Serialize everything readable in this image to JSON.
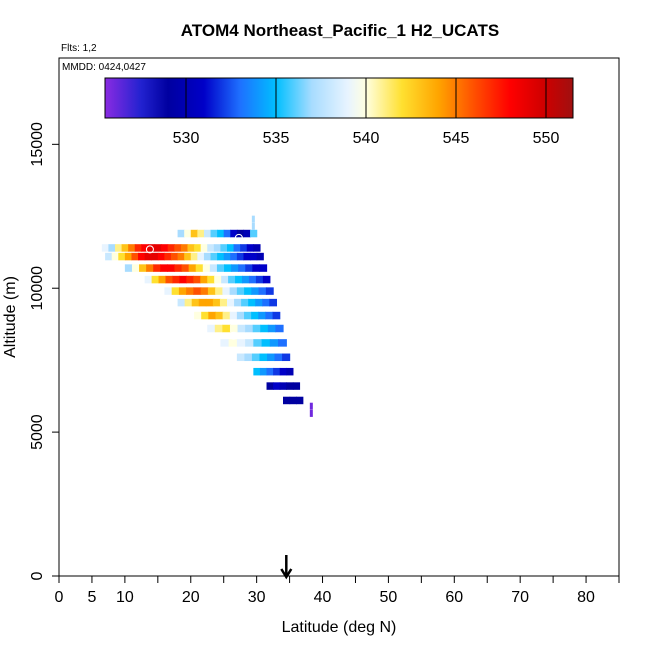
{
  "chart_data": {
    "type": "heatmap",
    "title": "ATOM4 Northeast_Pacific_1 H2_UCATS",
    "flights_label": "Flts: 1,2",
    "dates_label": "MMDD: 0424,0427",
    "xlabel": "Latitude (deg N)",
    "ylabel": "Altitude (m)",
    "xlim": [
      0,
      85
    ],
    "ylim": [
      0,
      18000
    ],
    "x_ticks": [
      0,
      5,
      10,
      20,
      30,
      40,
      50,
      60,
      70,
      80
    ],
    "y_ticks": [
      0,
      5000,
      10000,
      15000
    ],
    "colorbar": {
      "range": [
        525.5,
        551.5
      ],
      "ticks": [
        530,
        535,
        540,
        545,
        550
      ],
      "stops": [
        {
          "v": 525.5,
          "c": "#8a2be2"
        },
        {
          "v": 527.5,
          "c": "#2222d0"
        },
        {
          "v": 529,
          "c": "#0000a0"
        },
        {
          "v": 531,
          "c": "#0000c8"
        },
        {
          "v": 533,
          "c": "#1e70ff"
        },
        {
          "v": 535,
          "c": "#00bfff"
        },
        {
          "v": 537,
          "c": "#a8dcff"
        },
        {
          "v": 539,
          "c": "#e8f4ff"
        },
        {
          "v": 540,
          "c": "#ffffe0"
        },
        {
          "v": 542,
          "c": "#ffe030"
        },
        {
          "v": 544,
          "c": "#ffa500"
        },
        {
          "v": 546,
          "c": "#ff5000"
        },
        {
          "v": 548,
          "c": "#ff0000"
        },
        {
          "v": 550,
          "c": "#cc0000"
        },
        {
          "v": 551.5,
          "c": "#a01010"
        }
      ]
    },
    "flight_tracks": [
      {
        "alt": 11900,
        "lat": [
          18,
          30
        ],
        "values": [
          537,
          540,
          543,
          541,
          538,
          536,
          535,
          533,
          531,
          529,
          530,
          536
        ]
      },
      {
        "alt": 11400,
        "lat": [
          6.5,
          30.5
        ],
        "values": [
          539,
          537,
          541,
          543,
          545,
          547,
          548,
          549,
          549,
          548,
          547,
          546,
          545,
          543,
          542,
          540,
          538,
          537,
          536,
          535,
          533,
          532,
          531,
          530
        ]
      },
      {
        "alt": 11100,
        "lat": [
          7,
          31
        ],
        "values": [
          538,
          540,
          542,
          544,
          546,
          548,
          549,
          549,
          548,
          547,
          546,
          545,
          543,
          541,
          539,
          537,
          536,
          535,
          534,
          533,
          532,
          531,
          531,
          530
        ]
      },
      {
        "alt": 10700,
        "lat": [
          10,
          31.5
        ],
        "values": [
          537,
          540,
          543,
          545,
          547,
          548,
          548,
          547,
          546,
          544,
          542,
          540,
          538,
          536,
          535,
          534,
          533,
          532,
          531,
          531
        ]
      },
      {
        "alt": 10300,
        "lat": [
          13,
          32
        ],
        "values": [
          539,
          542,
          544,
          546,
          547,
          548,
          547,
          546,
          544,
          542,
          540,
          538,
          536,
          535,
          534,
          533,
          532,
          531
        ]
      },
      {
        "alt": 9900,
        "lat": [
          16,
          32.5
        ],
        "values": [
          539,
          542,
          544,
          545,
          546,
          545,
          543,
          541,
          539,
          537,
          536,
          535,
          534,
          533,
          532
        ]
      },
      {
        "alt": 9500,
        "lat": [
          18,
          33
        ],
        "values": [
          538,
          541,
          543,
          544,
          544,
          543,
          541,
          539,
          537,
          536,
          535,
          534,
          533,
          532
        ]
      },
      {
        "alt": 9050,
        "lat": [
          20.5,
          33.5
        ],
        "values": [
          540,
          542,
          544,
          543,
          541,
          539,
          537,
          536,
          535,
          534,
          533,
          532
        ]
      },
      {
        "alt": 8600,
        "lat": [
          22.5,
          34
        ],
        "values": [
          539,
          541,
          542,
          540,
          538,
          537,
          536,
          535,
          534,
          533
        ]
      },
      {
        "alt": 8100,
        "lat": [
          24.5,
          34.5
        ],
        "values": [
          539,
          540,
          539,
          538,
          536,
          535,
          534,
          533
        ]
      },
      {
        "alt": 7600,
        "lat": [
          27,
          35
        ],
        "values": [
          538,
          537,
          536,
          535,
          534,
          533,
          532
        ]
      },
      {
        "alt": 7100,
        "lat": [
          29.5,
          35.5
        ],
        "values": [
          535,
          534,
          533,
          532,
          531,
          530
        ]
      },
      {
        "alt": 6600,
        "lat": [
          31.5,
          36.5
        ],
        "values": [
          529,
          531,
          530,
          529,
          529
        ]
      },
      {
        "alt": 6100,
        "lat": [
          34,
          37
        ],
        "values": [
          529,
          529,
          529
        ]
      }
    ],
    "extra_points": [
      {
        "lat": 29.5,
        "alt": 12400,
        "value": 537
      },
      {
        "lat": 29.5,
        "alt": 12150,
        "value": 537
      },
      {
        "lat": 38.3,
        "alt": 5900,
        "value": 526
      },
      {
        "lat": 38.3,
        "alt": 5650,
        "value": 526
      }
    ],
    "circle_markers": [
      {
        "lat": 13.8,
        "alt": 11350
      },
      {
        "lat": 27.3,
        "alt": 11750
      },
      {
        "lat": 26.5,
        "alt": 8350
      }
    ],
    "arrow_latitude": 34.5
  }
}
